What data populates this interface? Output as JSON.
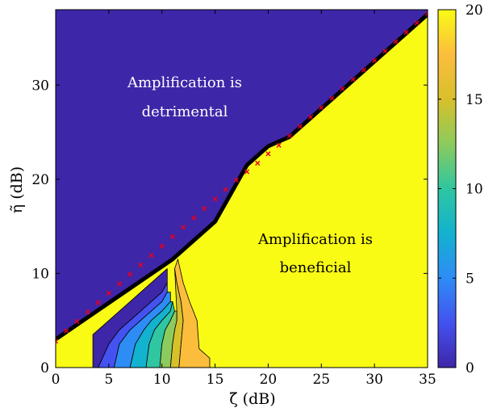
{
  "chart_data": {
    "type": "heatmap",
    "xlabel": "ζ̃ (dB)",
    "ylabel": "η̃ (dB)",
    "xlim": [
      0,
      35
    ],
    "ylim": [
      0,
      38
    ],
    "x_ticks": [
      "0",
      "5",
      "10",
      "15",
      "20",
      "25",
      "30",
      "35"
    ],
    "y_ticks": [
      "0",
      "10",
      "20",
      "30"
    ],
    "colorbar": {
      "range": [
        0,
        20
      ],
      "ticks": [
        "0",
        "5",
        "10",
        "15",
        "20"
      ],
      "colormap": [
        "#3e26a8",
        "#4352f0",
        "#2e8cf5",
        "#13b2cf",
        "#2fc6a1",
        "#8ccb5d",
        "#d8c02b",
        "#fcbd3d",
        "#f9fb15"
      ]
    },
    "annotations": [
      {
        "text_line1": "Amplification is",
        "text_line2": "detrimental"
      },
      {
        "text_line1": "Amplification is",
        "text_line2": "beneficial"
      }
    ],
    "boundary": [
      [
        0,
        3
      ],
      [
        11,
        11.5
      ],
      [
        15,
        15.5
      ],
      [
        18,
        21.5
      ],
      [
        20,
        23.5
      ],
      [
        22,
        24.5
      ],
      [
        25,
        27.5
      ],
      [
        30,
        32.5
      ],
      [
        35,
        37.5
      ]
    ],
    "markers": [
      [
        0,
        2.8
      ],
      [
        1,
        3.9
      ],
      [
        2,
        4.9
      ],
      [
        3,
        5.9
      ],
      [
        4,
        6.9
      ],
      [
        5,
        7.9
      ],
      [
        6,
        8.9
      ],
      [
        7,
        9.9
      ],
      [
        8,
        10.9
      ],
      [
        9,
        11.9
      ],
      [
        10,
        12.9
      ],
      [
        11,
        13.9
      ],
      [
        12,
        14.9
      ],
      [
        13,
        15.9
      ],
      [
        14,
        16.9
      ],
      [
        15,
        17.9
      ],
      [
        16,
        18.9
      ],
      [
        17,
        19.9
      ],
      [
        18,
        20.8
      ],
      [
        19,
        21.7
      ],
      [
        20,
        22.7
      ],
      [
        21,
        23.6
      ],
      [
        22,
        24.6
      ],
      [
        23,
        25.6
      ],
      [
        24,
        26.6
      ],
      [
        25,
        27.6
      ],
      [
        26,
        28.6
      ],
      [
        27,
        29.6
      ],
      [
        28,
        30.6
      ],
      [
        29,
        31.6
      ],
      [
        30,
        32.6
      ],
      [
        31,
        33.6
      ],
      [
        32,
        34.6
      ],
      [
        33,
        35.6
      ],
      [
        34,
        36.6
      ],
      [
        35,
        37.6
      ]
    ],
    "contour_bands": [
      {
        "level": 0,
        "color": "#3e26a8",
        "poly": [
          [
            3.5,
            0
          ],
          [
            4.0,
            0
          ],
          [
            5,
            2.5
          ],
          [
            6,
            4
          ],
          [
            7,
            5
          ],
          [
            8,
            6
          ],
          [
            9,
            7
          ],
          [
            10,
            8
          ],
          [
            10.5,
            9
          ],
          [
            10.5,
            10.5
          ],
          [
            9,
            9
          ],
          [
            7,
            7
          ],
          [
            5,
            5
          ],
          [
            3.5,
            3.5
          ]
        ]
      },
      {
        "level": 2,
        "color": "#4352f0",
        "poly": [
          [
            4.0,
            0
          ],
          [
            5.5,
            0
          ],
          [
            6,
            2.5
          ],
          [
            7,
            4
          ],
          [
            8,
            5
          ],
          [
            9,
            6
          ],
          [
            10,
            7
          ],
          [
            10.5,
            8
          ],
          [
            10.5,
            9
          ],
          [
            10,
            8
          ],
          [
            9,
            7
          ],
          [
            8,
            6
          ],
          [
            7,
            5
          ],
          [
            6,
            4
          ],
          [
            5,
            2.5
          ]
        ]
      },
      {
        "level": 5,
        "color": "#2e8cf5",
        "poly": [
          [
            5.5,
            0
          ],
          [
            7,
            0
          ],
          [
            7.5,
            2.5
          ],
          [
            8.3,
            4
          ],
          [
            9,
            5
          ],
          [
            10,
            6
          ],
          [
            10.8,
            7
          ],
          [
            10.8,
            8
          ],
          [
            10.5,
            8
          ],
          [
            10,
            7
          ],
          [
            9,
            6
          ],
          [
            8,
            5
          ],
          [
            7,
            4
          ],
          [
            6,
            2.5
          ]
        ]
      },
      {
        "level": 8,
        "color": "#13b2cf",
        "poly": [
          [
            7,
            0
          ],
          [
            8.5,
            0
          ],
          [
            8.8,
            2.5
          ],
          [
            9.3,
            4
          ],
          [
            10,
            5
          ],
          [
            10.8,
            6
          ],
          [
            11,
            7
          ],
          [
            10.8,
            7
          ],
          [
            10,
            6
          ],
          [
            9,
            5
          ],
          [
            8.3,
            4
          ],
          [
            7.5,
            2.5
          ]
        ]
      },
      {
        "level": 11,
        "color": "#2fc6a1",
        "poly": [
          [
            8.5,
            0
          ],
          [
            9.8,
            0
          ],
          [
            10,
            2.5
          ],
          [
            10.3,
            4
          ],
          [
            10.8,
            5
          ],
          [
            11.2,
            6
          ],
          [
            11,
            7
          ],
          [
            10.8,
            6
          ],
          [
            10,
            5
          ],
          [
            9.3,
            4
          ],
          [
            8.8,
            2.5
          ]
        ]
      },
      {
        "level": 14,
        "color": "#8ccb5d",
        "poly": [
          [
            9.8,
            0
          ],
          [
            10.8,
            0
          ],
          [
            11,
            2.5
          ],
          [
            11.2,
            4
          ],
          [
            11.4,
            5
          ],
          [
            11.4,
            6
          ],
          [
            11.2,
            6
          ],
          [
            10.8,
            5
          ],
          [
            10.3,
            4
          ],
          [
            10,
            2.5
          ]
        ]
      },
      {
        "level": 16,
        "color": "#d8c02b",
        "poly": [
          [
            10.8,
            0
          ],
          [
            11.6,
            0
          ],
          [
            11.8,
            2.5
          ],
          [
            12,
            5
          ],
          [
            11.8,
            7
          ],
          [
            11.4,
            9
          ],
          [
            11.2,
            10.5
          ],
          [
            11.4,
            6
          ],
          [
            11.4,
            5
          ],
          [
            11.2,
            4
          ],
          [
            11,
            2.5
          ]
        ]
      },
      {
        "level": 18,
        "color": "#fcbd3d",
        "poly": [
          [
            11.6,
            0
          ],
          [
            14.5,
            0
          ],
          [
            14.5,
            1
          ],
          [
            13.5,
            2
          ],
          [
            13.3,
            5
          ],
          [
            12.6,
            7
          ],
          [
            12,
            9
          ],
          [
            11.8,
            10
          ],
          [
            11.5,
            11.5
          ],
          [
            11.2,
            10.5
          ],
          [
            11.4,
            9
          ],
          [
            11.8,
            7
          ],
          [
            12,
            5
          ],
          [
            11.8,
            2.5
          ]
        ]
      }
    ]
  }
}
